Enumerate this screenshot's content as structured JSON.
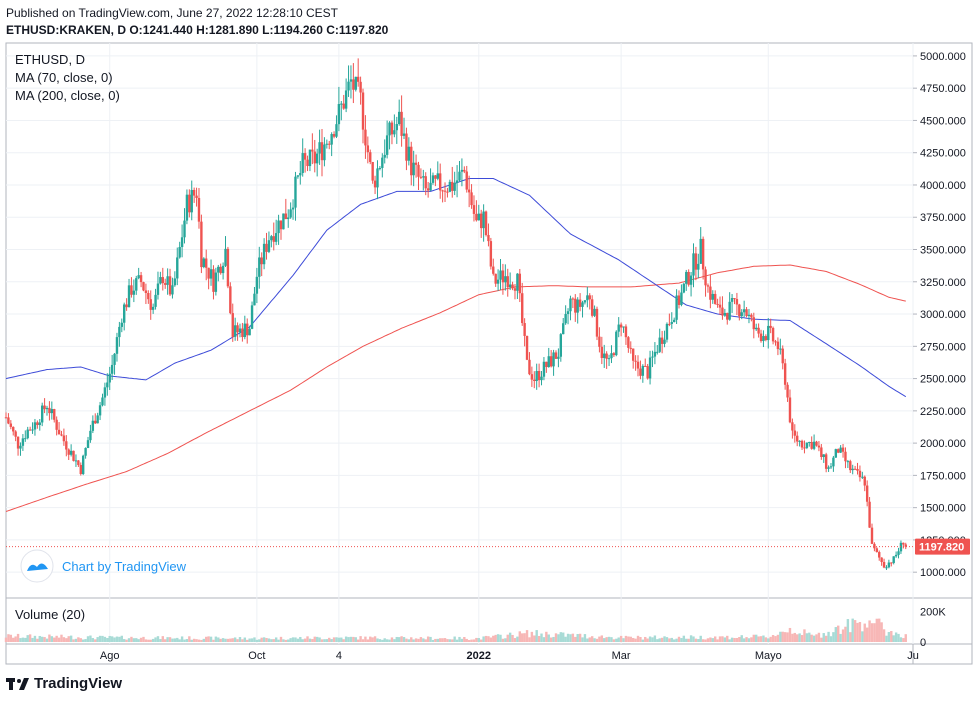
{
  "header": {
    "published": "Published on TradingView.com, June 27, 2022 12:28:10 CEST",
    "symbol_line": "ETHUSD:KRAKEN, D",
    "ohlc": {
      "o_label": "O:",
      "o": "1241.440",
      "h_label": "H:",
      "h": "1281.890",
      "l_label": "L:",
      "l": "1194.260",
      "c_label": "C:",
      "c": "1197.820"
    }
  },
  "legend": {
    "symbol": "ETHUSD, D",
    "ma70": "MA (70, close, 0)",
    "ma200": "MA (200, close, 0)"
  },
  "watermark": "Chart by TradingView",
  "volume_label": "Volume (20)",
  "footer_brand": "TradingView",
  "colors": {
    "up": "#26a69a",
    "down": "#ef5350",
    "ma70": "#3d4bd8",
    "ma200": "#ef5350",
    "grid": "#eef1f5",
    "last_price_bg": "#ef5350",
    "accent": "#2196f3"
  },
  "chart_data": {
    "type": "candlestick",
    "price_axis": {
      "ylim": [
        800,
        5100
      ],
      "ticks": [
        "5000.000",
        "4750.000",
        "4500.000",
        "4250.000",
        "4000.000",
        "3750.000",
        "3500.000",
        "3250.000",
        "3000.000",
        "2750.000",
        "2500.000",
        "2250.000",
        "2000.000",
        "1750.000",
        "1500.000",
        "1250.000",
        "1000.000"
      ],
      "tick_values": [
        5000,
        4750,
        4500,
        4250,
        4000,
        3750,
        3500,
        3250,
        3000,
        2750,
        2500,
        2250,
        2000,
        1750,
        1500,
        1250,
        1000
      ]
    },
    "last_price": {
      "value": 1197.82,
      "label": "1197.820"
    },
    "volume_axis": {
      "ticks": [
        "200K",
        "0"
      ],
      "tick_values": [
        200000,
        0
      ],
      "ylim": [
        0,
        250000
      ]
    },
    "x_axis": {
      "labels": [
        "Ago",
        "Oct",
        "4",
        "2022",
        "Mar",
        "Mayo",
        "Ju"
      ],
      "label_dates": [
        "2021-08-01",
        "2021-10-01",
        "2021-11-04",
        "2022-01-01",
        "2022-03-01",
        "2022-05-01",
        "2022-06-30"
      ],
      "start": "2021-06-19",
      "end": "2022-06-30"
    },
    "price_anchors": [
      [
        "2021-06-19",
        2200
      ],
      [
        "2021-06-24",
        1990
      ],
      [
        "2021-06-28",
        2100
      ],
      [
        "2021-07-01",
        2150
      ],
      [
        "2021-07-06",
        2300
      ],
      [
        "2021-07-12",
        2050
      ],
      [
        "2021-07-20",
        1800
      ],
      [
        "2021-07-24",
        2100
      ],
      [
        "2021-07-29",
        2350
      ],
      [
        "2021-08-02",
        2600
      ],
      [
        "2021-08-06",
        3000
      ],
      [
        "2021-08-10",
        3200
      ],
      [
        "2021-08-14",
        3250
      ],
      [
        "2021-08-19",
        3050
      ],
      [
        "2021-08-23",
        3300
      ],
      [
        "2021-08-27",
        3150
      ],
      [
        "2021-09-02",
        3850
      ],
      [
        "2021-09-06",
        3950
      ],
      [
        "2021-09-08",
        3450
      ],
      [
        "2021-09-13",
        3250
      ],
      [
        "2021-09-18",
        3500
      ],
      [
        "2021-09-21",
        2850
      ],
      [
        "2021-09-28",
        2900
      ],
      [
        "2021-10-01",
        3300
      ],
      [
        "2021-10-06",
        3600
      ],
      [
        "2021-10-14",
        3800
      ],
      [
        "2021-10-20",
        4150
      ],
      [
        "2021-10-25",
        4200
      ],
      [
        "2021-10-30",
        4350
      ],
      [
        "2021-11-04",
        4550
      ],
      [
        "2021-11-09",
        4800
      ],
      [
        "2021-11-13",
        4650
      ],
      [
        "2021-11-18",
        4000
      ],
      [
        "2021-11-24",
        4350
      ],
      [
        "2021-11-29",
        4500
      ],
      [
        "2021-12-04",
        4150
      ],
      [
        "2021-12-10",
        3950
      ],
      [
        "2021-12-15",
        4000
      ],
      [
        "2021-12-21",
        4000
      ],
      [
        "2021-12-26",
        4100
      ],
      [
        "2021-12-31",
        3700
      ],
      [
        "2022-01-03",
        3750
      ],
      [
        "2022-01-07",
        3250
      ],
      [
        "2022-01-12",
        3300
      ],
      [
        "2022-01-17",
        3250
      ],
      [
        "2022-01-21",
        2600
      ],
      [
        "2022-01-24",
        2500
      ],
      [
        "2022-01-29",
        2600
      ],
      [
        "2022-02-03",
        2700
      ],
      [
        "2022-02-08",
        3100
      ],
      [
        "2022-02-11",
        3050
      ],
      [
        "2022-02-16",
        3150
      ],
      [
        "2022-02-21",
        2700
      ],
      [
        "2022-02-24",
        2600
      ],
      [
        "2022-03-01",
        2950
      ],
      [
        "2022-03-06",
        2600
      ],
      [
        "2022-03-12",
        2550
      ],
      [
        "2022-03-16",
        2750
      ],
      [
        "2022-03-21",
        2950
      ],
      [
        "2022-03-26",
        3150
      ],
      [
        "2022-03-30",
        3350
      ],
      [
        "2022-04-03",
        3500
      ],
      [
        "2022-04-06",
        3200
      ],
      [
        "2022-04-11",
        3000
      ],
      [
        "2022-04-16",
        3050
      ],
      [
        "2022-04-21",
        3050
      ],
      [
        "2022-04-26",
        2850
      ],
      [
        "2022-05-01",
        2850
      ],
      [
        "2022-05-05",
        2750
      ],
      [
        "2022-05-08",
        2500
      ],
      [
        "2022-05-11",
        2050
      ],
      [
        "2022-05-15",
        2000
      ],
      [
        "2022-05-20",
        2000
      ],
      [
        "2022-05-26",
        1800
      ],
      [
        "2022-05-30",
        1950
      ],
      [
        "2022-06-04",
        1800
      ],
      [
        "2022-06-10",
        1700
      ],
      [
        "2022-06-13",
        1200
      ],
      [
        "2022-06-18",
        1050
      ],
      [
        "2022-06-22",
        1100
      ],
      [
        "2022-06-26",
        1240
      ],
      [
        "2022-06-27",
        1198
      ]
    ],
    "ma70_anchors": [
      [
        "2021-06-19",
        2500
      ],
      [
        "2021-07-06",
        2570
      ],
      [
        "2021-07-20",
        2590
      ],
      [
        "2021-08-01",
        2520
      ],
      [
        "2021-08-16",
        2490
      ],
      [
        "2021-08-28",
        2620
      ],
      [
        "2021-09-12",
        2720
      ],
      [
        "2021-09-28",
        2900
      ],
      [
        "2021-10-16",
        3300
      ],
      [
        "2021-10-30",
        3650
      ],
      [
        "2021-11-13",
        3850
      ],
      [
        "2021-11-28",
        3950
      ],
      [
        "2021-12-12",
        3950
      ],
      [
        "2021-12-28",
        4050
      ],
      [
        "2022-01-07",
        4050
      ],
      [
        "2022-01-22",
        3920
      ],
      [
        "2022-02-08",
        3620
      ],
      [
        "2022-02-28",
        3420
      ],
      [
        "2022-03-16",
        3220
      ],
      [
        "2022-03-28",
        3070
      ],
      [
        "2022-04-10",
        3000
      ],
      [
        "2022-04-25",
        2960
      ],
      [
        "2022-05-10",
        2950
      ],
      [
        "2022-05-25",
        2770
      ],
      [
        "2022-06-08",
        2600
      ],
      [
        "2022-06-20",
        2440
      ],
      [
        "2022-06-27",
        2360
      ]
    ],
    "ma200_anchors": [
      [
        "2021-06-19",
        1470
      ],
      [
        "2021-07-06",
        1580
      ],
      [
        "2021-07-22",
        1680
      ],
      [
        "2021-08-08",
        1780
      ],
      [
        "2021-08-25",
        1920
      ],
      [
        "2021-09-10",
        2080
      ],
      [
        "2021-09-28",
        2250
      ],
      [
        "2021-10-15",
        2410
      ],
      [
        "2021-10-30",
        2590
      ],
      [
        "2021-11-14",
        2750
      ],
      [
        "2021-11-30",
        2890
      ],
      [
        "2021-12-16",
        3010
      ],
      [
        "2022-01-01",
        3150
      ],
      [
        "2022-01-16",
        3210
      ],
      [
        "2022-02-01",
        3220
      ],
      [
        "2022-02-16",
        3210
      ],
      [
        "2022-03-05",
        3210
      ],
      [
        "2022-03-25",
        3240
      ],
      [
        "2022-04-10",
        3320
      ],
      [
        "2022-04-25",
        3370
      ],
      [
        "2022-05-10",
        3380
      ],
      [
        "2022-05-25",
        3330
      ],
      [
        "2022-06-08",
        3230
      ],
      [
        "2022-06-20",
        3130
      ],
      [
        "2022-06-27",
        3100
      ]
    ],
    "volume_anchors": [
      [
        "2021-06-19",
        40000
      ],
      [
        "2021-08-01",
        30000
      ],
      [
        "2021-10-01",
        25000
      ],
      [
        "2021-11-04",
        30000
      ],
      [
        "2022-01-01",
        25000
      ],
      [
        "2022-01-22",
        60000
      ],
      [
        "2022-03-01",
        30000
      ],
      [
        "2022-05-01",
        35000
      ],
      [
        "2022-05-10",
        90000
      ],
      [
        "2022-05-20",
        40000
      ],
      [
        "2022-06-13",
        160000
      ],
      [
        "2022-06-18",
        80000
      ],
      [
        "2022-06-27",
        45000
      ]
    ]
  }
}
